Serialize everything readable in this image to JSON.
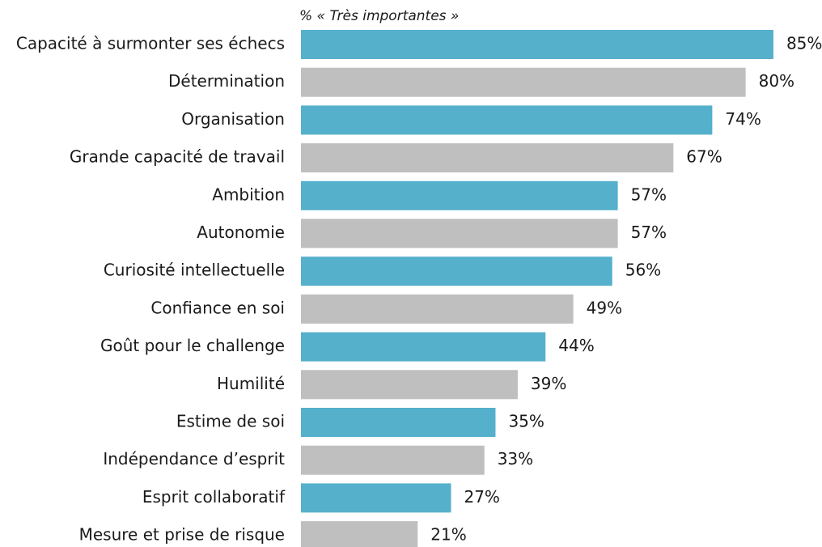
{
  "chart_data": {
    "type": "hbar",
    "subtitle": "% « Très importantes »",
    "categories": [
      "Capacité à surmonter ses échecs",
      "Détermination",
      "Organisation",
      "Grande capacité de travail",
      "Ambition",
      "Autonomie",
      "Curiosité intellectuelle",
      "Confiance en soi",
      "Goût pour le challenge",
      "Humilité",
      "Estime de soi",
      "Indépendance d’esprit",
      "Esprit collaboratif",
      "Mesure et prise de risque"
    ],
    "values": [
      85,
      80,
      74,
      67,
      57,
      57,
      56,
      49,
      44,
      39,
      35,
      33,
      27,
      21
    ],
    "value_labels": [
      "85%",
      "80%",
      "74%",
      "67%",
      "57%",
      "57%",
      "56%",
      "49%",
      "44%",
      "39%",
      "35%",
      "33%",
      "27%",
      "21%"
    ],
    "colors": [
      "#55b0cc",
      "#bfbfbf",
      "#55b0cc",
      "#bfbfbf",
      "#55b0cc",
      "#bfbfbf",
      "#55b0cc",
      "#bfbfbf",
      "#55b0cc",
      "#bfbfbf",
      "#55b0cc",
      "#bfbfbf",
      "#55b0cc",
      "#bfbfbf"
    ]
  }
}
